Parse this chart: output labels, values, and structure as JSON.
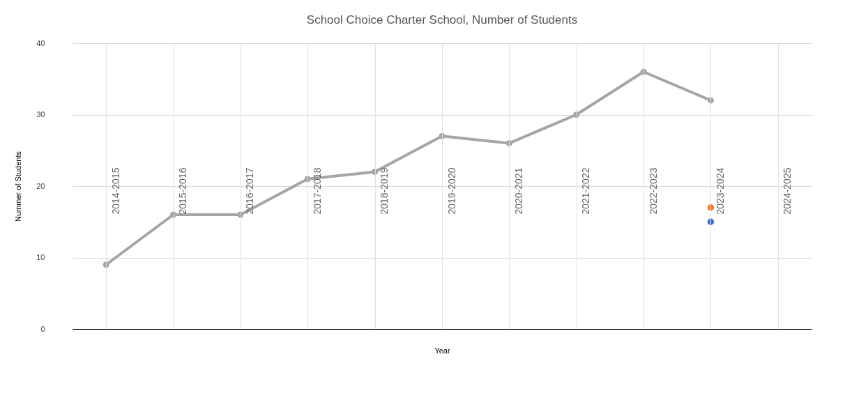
{
  "chart_data": {
    "type": "line",
    "title": "School Choice Charter School, Number of Students",
    "xlabel": "Year",
    "ylabel": "Nummer of Students",
    "categories": [
      "2014-2015",
      "2015-2016",
      "2016-2017",
      "2017-2018",
      "2018-2019",
      "2019-2020",
      "2020-2021",
      "2021-2022",
      "2022-2023",
      "2023-2024",
      "2024-2025"
    ],
    "series": [
      {
        "color": "#a5a5a5",
        "values": [
          9,
          16,
          16,
          21,
          22,
          27,
          26,
          30,
          36,
          32,
          null
        ]
      },
      {
        "type": "scatter",
        "color": "#f47b2a",
        "x": [
          "2023-2024"
        ],
        "values": [
          17
        ]
      },
      {
        "type": "scatter",
        "color": "#4472c4",
        "x": [
          "2023-2024"
        ],
        "values": [
          15
        ]
      }
    ],
    "ylim": [
      0,
      40
    ],
    "yticks": [
      0,
      10,
      20,
      30,
      40
    ],
    "grid": true,
    "marker": "circle",
    "line_style": "solid"
  }
}
